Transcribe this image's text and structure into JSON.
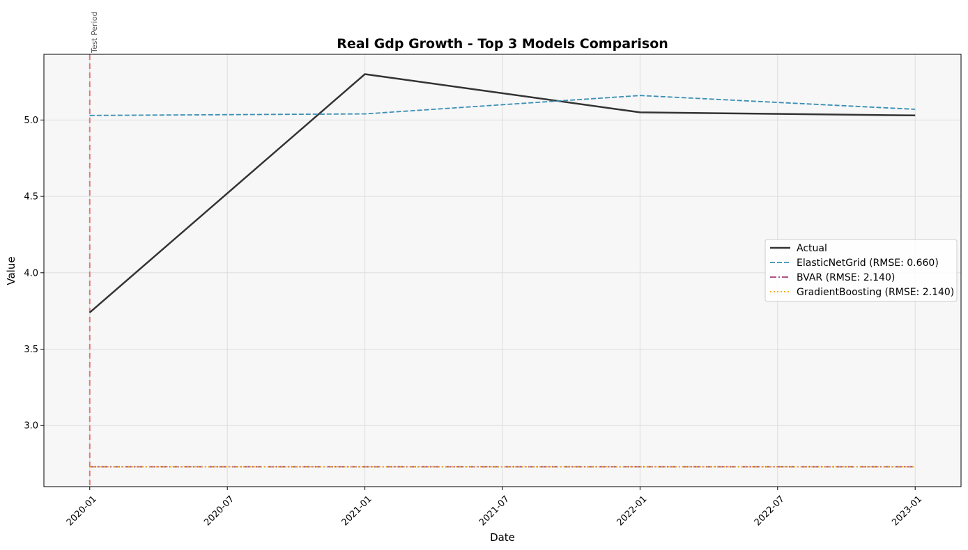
{
  "chart_data": {
    "type": "line",
    "title": "Real Gdp Growth - Top 3 Models Comparison",
    "xlabel": "Date",
    "ylabel": "Value",
    "x": [
      "2020-01",
      "2021-01",
      "2022-01",
      "2023-01"
    ],
    "x_ticks": [
      "2020-01",
      "2020-07",
      "2021-01",
      "2021-07",
      "2022-01",
      "2022-07",
      "2023-01"
    ],
    "x_range": [
      "2019-11",
      "2023-03"
    ],
    "y_ticks": [
      "3.0",
      "3.5",
      "4.0",
      "4.5",
      "5.0"
    ],
    "ylim": [
      2.6,
      5.43
    ],
    "grid": true,
    "legend_position": "center-right",
    "background": "#f7f7f7",
    "series": [
      {
        "name": "Actual",
        "values": [
          3.74,
          5.3,
          5.05,
          5.03
        ],
        "color": "#333333",
        "style": "solid"
      },
      {
        "name": "ElasticNetGrid (RMSE: 0.660)",
        "values": [
          5.03,
          5.04,
          5.16,
          5.07
        ],
        "color": "#3a8fb5",
        "style": "dashed"
      },
      {
        "name": "BVAR (RMSE: 2.140)",
        "values": [
          2.73,
          2.73,
          2.73,
          2.73
        ],
        "color": "#a23b72",
        "style": "dashdot"
      },
      {
        "name": "GradientBoosting (RMSE: 2.140)",
        "values": [
          2.73,
          2.73,
          2.73,
          2.73
        ],
        "color": "#f0a500",
        "style": "dotted"
      }
    ],
    "annotations": [
      {
        "text": "Test Period",
        "x": "2020-01",
        "type": "vline",
        "color": "#e06666"
      }
    ]
  }
}
